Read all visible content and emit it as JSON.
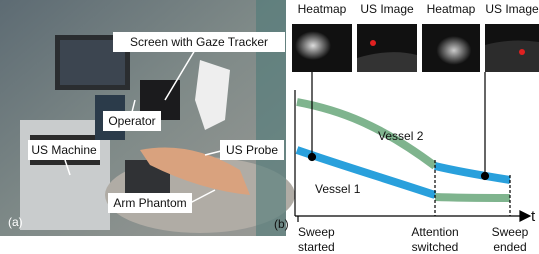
{
  "photo": {
    "panel_label": "(a)",
    "labels": [
      "Screen with Gaze Tracker",
      "Operator",
      "US Machine",
      "US Probe",
      "Arm Phantom"
    ]
  },
  "diagram": {
    "panel_label": "(b)",
    "thumbnails": [
      "Heatmap",
      "US Image",
      "Heatmap",
      "US Image"
    ],
    "vessels": [
      "Vessel 2",
      "Vessel 1"
    ],
    "axis_label": "t",
    "events": [
      [
        "Sweep",
        "started"
      ],
      [
        "Attention",
        "switched"
      ],
      [
        "Sweep",
        "ended"
      ]
    ]
  }
}
